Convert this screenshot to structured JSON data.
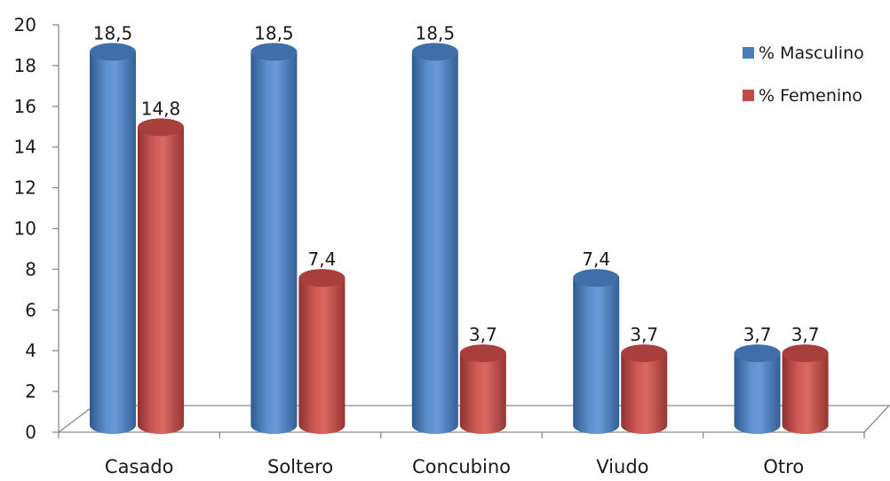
{
  "chart_data": {
    "type": "bar",
    "variant": "3d-cylinder",
    "title": "",
    "xlabel": "",
    "ylabel": "",
    "ylim": [
      0,
      20
    ],
    "yticks": [
      0,
      2,
      4,
      6,
      8,
      10,
      12,
      14,
      16,
      18,
      20
    ],
    "grid": false,
    "legend_position": "top-right",
    "categories": [
      "Casado",
      "Soltero",
      "Concubino",
      "Viudo",
      "Otro"
    ],
    "series": [
      {
        "name": "% Masculino",
        "color": "#4a7ebb",
        "values": [
          18.5,
          18.5,
          18.5,
          7.4,
          3.7
        ],
        "labels": [
          "18,5",
          "18,5",
          "18,5",
          "7,4",
          "3,7"
        ]
      },
      {
        "name": "% Femenino",
        "color": "#be4b48",
        "values": [
          14.8,
          7.4,
          3.7,
          3.7,
          3.7
        ],
        "labels": [
          "14,8",
          "7,4",
          "3,7",
          "3,7",
          "3,7"
        ]
      }
    ]
  }
}
